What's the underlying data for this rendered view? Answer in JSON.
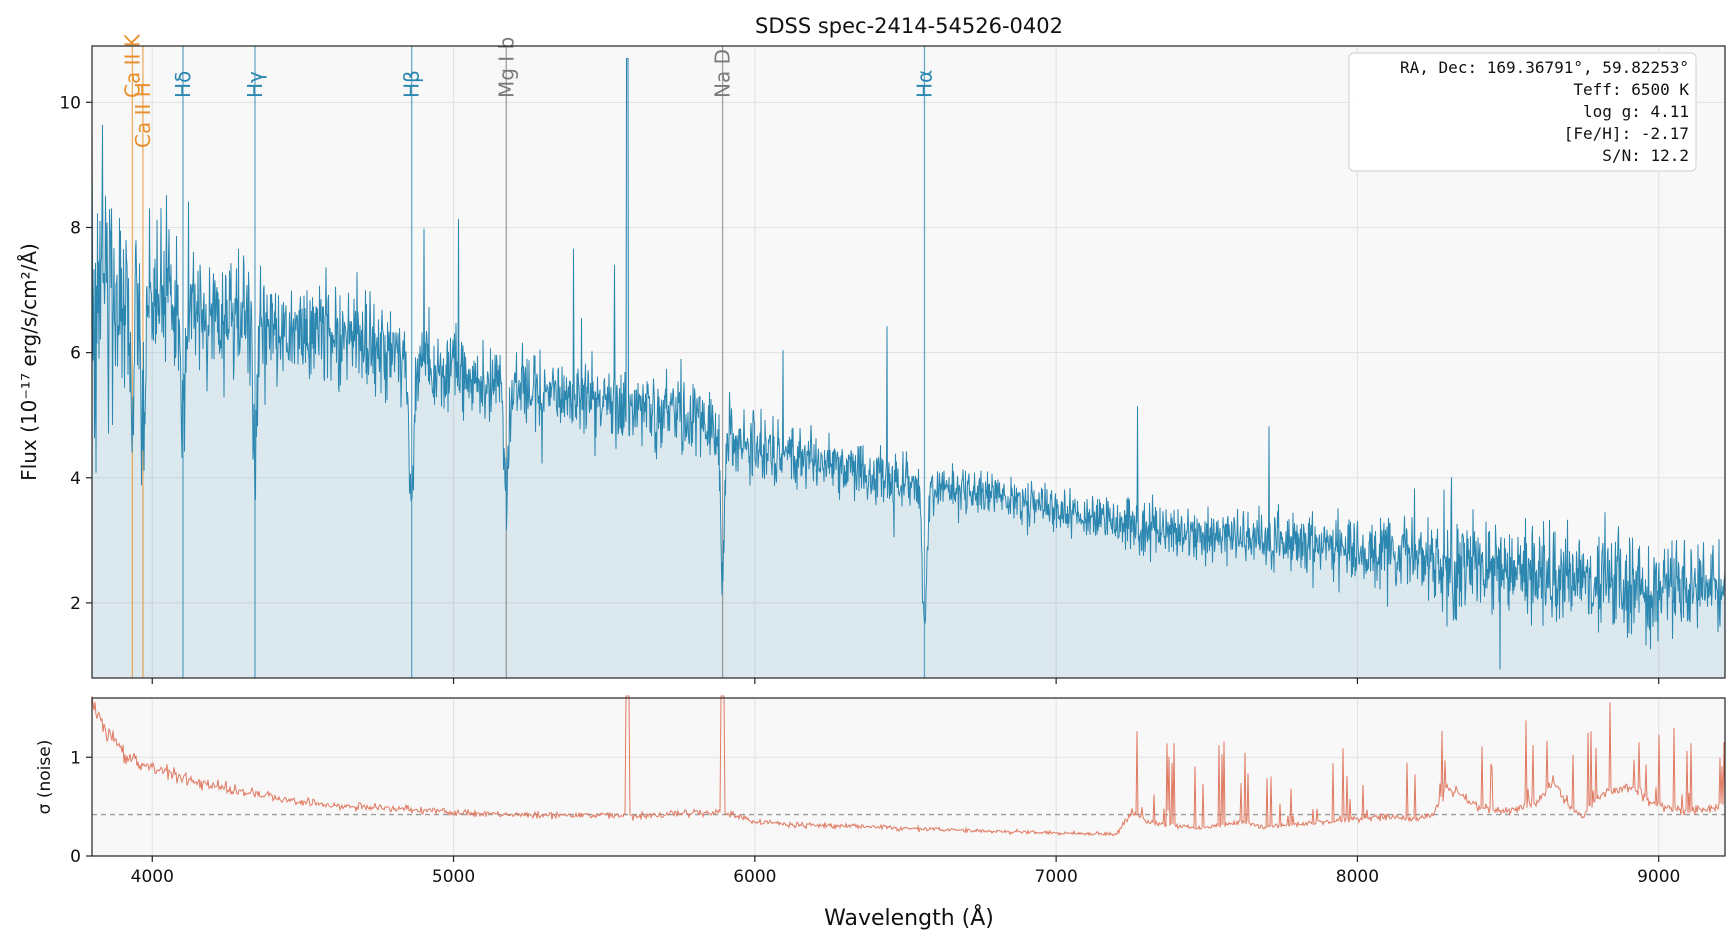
{
  "chart_data": [
    {
      "type": "line",
      "title": "SDSS spec-2414-54526-0402",
      "ylabel": "Flux (10⁻¹⁷ erg/s/cm²/Å)",
      "xlabel": "",
      "xlim": [
        3800,
        9220
      ],
      "ylim": [
        0.8,
        10.9
      ],
      "yticks": [
        2,
        4,
        6,
        8,
        10
      ],
      "xticks": [
        4000,
        5000,
        6000,
        7000,
        8000,
        9000
      ],
      "grid": true,
      "series": [
        {
          "color": "#2b86b0",
          "fill": true,
          "x": [
            3810,
            3850,
            3900,
            3950,
            4000,
            4050,
            4100,
            4150,
            4200,
            4250,
            4300,
            4350,
            4400,
            4500,
            4600,
            4700,
            4800,
            4850,
            4900,
            5000,
            5100,
            5200,
            5300,
            5400,
            5500,
            5600,
            5700,
            5800,
            5900,
            6000,
            6100,
            6200,
            6300,
            6400,
            6500,
            6600,
            6700,
            6800,
            6900,
            7000,
            7100,
            7200,
            7300,
            7400,
            7500,
            7600,
            7700,
            7800,
            7900,
            8000,
            8100,
            8200,
            8300,
            8400,
            8500,
            8600,
            8700,
            8800,
            8900,
            9000,
            9100,
            9200
          ],
          "y": [
            6.9,
            7.0,
            7.0,
            6.9,
            6.9,
            6.9,
            6.8,
            6.8,
            6.7,
            6.6,
            6.6,
            6.5,
            6.4,
            6.3,
            6.3,
            6.2,
            6.0,
            5.7,
            5.8,
            5.7,
            5.6,
            5.5,
            5.4,
            5.3,
            5.2,
            5.1,
            5.0,
            4.9,
            4.8,
            4.5,
            4.4,
            4.3,
            4.2,
            4.0,
            3.9,
            3.8,
            3.8,
            3.7,
            3.6,
            3.5,
            3.4,
            3.3,
            3.2,
            3.2,
            3.1,
            3.1,
            3.0,
            3.0,
            2.9,
            2.8,
            2.8,
            2.7,
            2.6,
            2.6,
            2.5,
            2.5,
            2.4,
            2.4,
            2.3,
            2.3,
            2.2,
            2.2
          ]
        }
      ],
      "lines": [
        {
          "label": "Ca II K",
          "x": 3934,
          "color": "#e8902b"
        },
        {
          "label": "Ca II H",
          "x": 3969,
          "color": "#e8902b"
        },
        {
          "label": "Hδ",
          "x": 4102,
          "color": "#2b86b0"
        },
        {
          "label": "Hγ",
          "x": 4341,
          "color": "#2b86b0"
        },
        {
          "label": "Hβ",
          "x": 4861,
          "color": "#2b86b0"
        },
        {
          "label": "Mg I b",
          "x": 5175,
          "color": "#7a7a7a"
        },
        {
          "label": "Na D",
          "x": 5893,
          "color": "#7a7a7a"
        },
        {
          "label": "Hα",
          "x": 6563,
          "color": "#2b86b0"
        }
      ],
      "annotation": [
        "RA, Dec: 169.36791°, 59.82253°",
        "Teff: 6500 K",
        "log g: 4.11",
        "[Fe/H]: -2.17",
        "S/N: 12.2"
      ]
    },
    {
      "type": "line",
      "title": "",
      "ylabel": "σ (noise)",
      "xlabel": "Wavelength (Å)",
      "xlim": [
        3800,
        9220
      ],
      "ylim": [
        0,
        1.6
      ],
      "yticks": [
        0,
        1
      ],
      "xticks": [
        4000,
        5000,
        6000,
        7000,
        8000,
        9000
      ],
      "grid": true,
      "median": 0.42,
      "series": [
        {
          "color": "#e07a62",
          "x": [
            3800,
            3850,
            3900,
            3950,
            4000,
            4100,
            4200,
            4300,
            4400,
            4500,
            4600,
            4800,
            5000,
            5200,
            5400,
            5600,
            5800,
            5900,
            6000,
            6100,
            6200,
            6400,
            6600,
            6800,
            7000,
            7200,
            7250,
            7300,
            7400,
            7500,
            7600,
            7700,
            7800,
            7900,
            8000,
            8100,
            8200,
            8250,
            8300,
            8400,
            8500,
            8600,
            8650,
            8700,
            8750,
            8800,
            8900,
            9000,
            9100,
            9200
          ],
          "y": [
            1.55,
            1.25,
            1.05,
            0.95,
            0.88,
            0.8,
            0.72,
            0.65,
            0.6,
            0.55,
            0.52,
            0.48,
            0.44,
            0.42,
            0.41,
            0.41,
            0.43,
            0.45,
            0.35,
            0.32,
            0.31,
            0.29,
            0.27,
            0.25,
            0.23,
            0.22,
            0.45,
            0.35,
            0.3,
            0.28,
            0.35,
            0.3,
            0.32,
            0.35,
            0.38,
            0.4,
            0.38,
            0.42,
            0.7,
            0.5,
            0.45,
            0.55,
            0.75,
            0.5,
            0.4,
            0.6,
            0.7,
            0.5,
            0.45,
            0.5
          ]
        }
      ]
    }
  ]
}
